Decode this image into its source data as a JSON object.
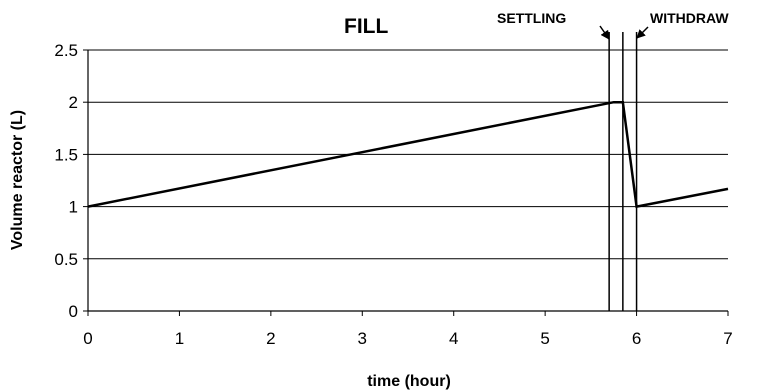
{
  "chart_data": {
    "type": "line",
    "xlabel": "time (hour)",
    "ylabel": "Volume reactor (L)",
    "xlim": [
      0,
      7
    ],
    "ylim": [
      0,
      2.5
    ],
    "x_ticks": [
      "0",
      "1",
      "2",
      "3",
      "4",
      "5",
      "6",
      "7"
    ],
    "y_ticks": [
      "0",
      "0.5",
      "1",
      "1.5",
      "2",
      "2.5"
    ],
    "grid": "horizontal",
    "legend": "none",
    "series": [
      {
        "x": [
          0,
          5.75,
          5.85,
          6.0,
          7.0
        ],
        "y": [
          1.0,
          2.0,
          2.0,
          1.0,
          1.17
        ]
      }
    ],
    "phase_boundaries_x": [
      5.7,
      5.85,
      6.0
    ],
    "annotations": {
      "fill": "FILL",
      "settling": "SETTLING",
      "withdraw": "WITHDRAW"
    },
    "colors": {
      "line": "#000000",
      "grid": "#000000",
      "background": "#ffffff"
    }
  }
}
